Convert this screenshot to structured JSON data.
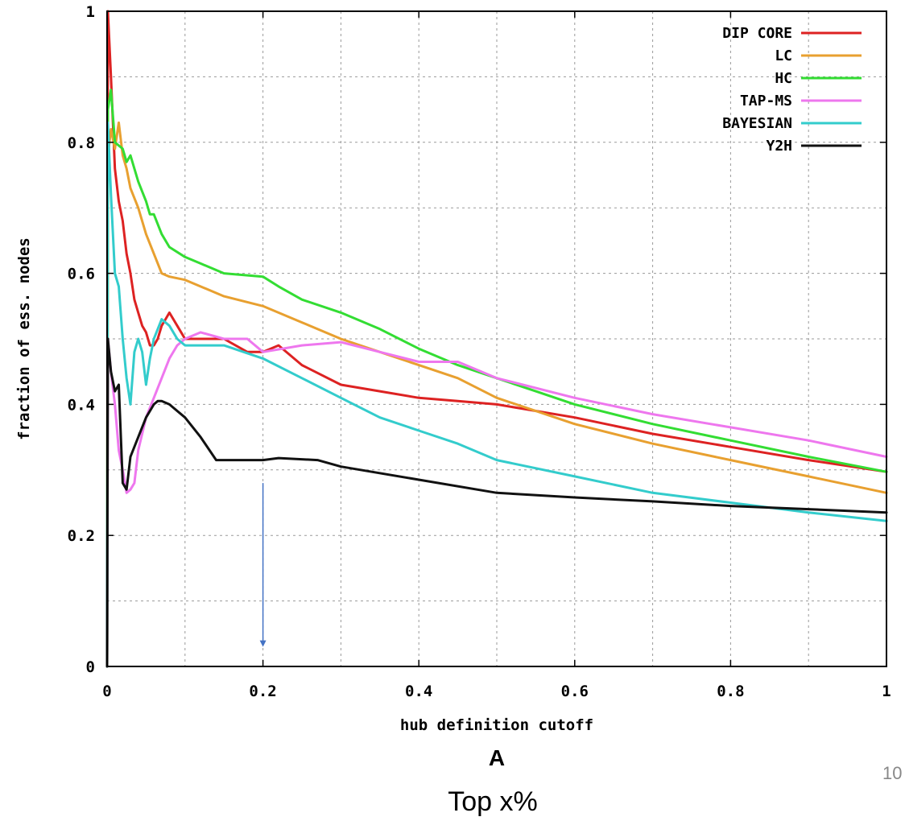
{
  "chart_data": {
    "type": "line",
    "xlabel": "hub definition cutoff",
    "ylabel": "fraction of ess. nodes",
    "xlim": [
      0,
      1
    ],
    "ylim": [
      0,
      1
    ],
    "x_ticks": [
      "0",
      "0.2",
      "0.4",
      "0.6",
      "0.8",
      "1"
    ],
    "y_ticks": [
      "0",
      "0.2",
      "0.4",
      "0.6",
      "0.8",
      "1"
    ],
    "grid": true,
    "legend_position": "top-right",
    "panel_label": "A",
    "annotations": [
      {
        "type": "arrow",
        "x": 0.2,
        "y_from": 0.28,
        "y_to": 0.03,
        "color": "#4472C4"
      }
    ],
    "series": [
      {
        "name": "DIP CORE",
        "color": "#dd2222",
        "points": [
          [
            0,
            0
          ],
          [
            0.001,
            1.0
          ],
          [
            0.005,
            0.9
          ],
          [
            0.01,
            0.76
          ],
          [
            0.015,
            0.71
          ],
          [
            0.02,
            0.68
          ],
          [
            0.025,
            0.63
          ],
          [
            0.03,
            0.6
          ],
          [
            0.035,
            0.56
          ],
          [
            0.04,
            0.54
          ],
          [
            0.045,
            0.52
          ],
          [
            0.05,
            0.51
          ],
          [
            0.055,
            0.49
          ],
          [
            0.06,
            0.49
          ],
          [
            0.065,
            0.5
          ],
          [
            0.07,
            0.52
          ],
          [
            0.075,
            0.53
          ],
          [
            0.08,
            0.54
          ],
          [
            0.09,
            0.52
          ],
          [
            0.1,
            0.5
          ],
          [
            0.12,
            0.5
          ],
          [
            0.15,
            0.5
          ],
          [
            0.18,
            0.48
          ],
          [
            0.2,
            0.48
          ],
          [
            0.22,
            0.49
          ],
          [
            0.25,
            0.46
          ],
          [
            0.3,
            0.43
          ],
          [
            0.35,
            0.42
          ],
          [
            0.4,
            0.41
          ],
          [
            0.45,
            0.405
          ],
          [
            0.5,
            0.4
          ],
          [
            0.6,
            0.38
          ],
          [
            0.7,
            0.355
          ],
          [
            0.8,
            0.335
          ],
          [
            0.9,
            0.315
          ],
          [
            1.0,
            0.297
          ]
        ]
      },
      {
        "name": "LC",
        "color": "#e8a030",
        "points": [
          [
            0,
            0
          ],
          [
            0.001,
            0.78
          ],
          [
            0.005,
            0.82
          ],
          [
            0.01,
            0.79
          ],
          [
            0.015,
            0.83
          ],
          [
            0.02,
            0.78
          ],
          [
            0.025,
            0.76
          ],
          [
            0.03,
            0.73
          ],
          [
            0.04,
            0.7
          ],
          [
            0.05,
            0.66
          ],
          [
            0.06,
            0.63
          ],
          [
            0.07,
            0.6
          ],
          [
            0.08,
            0.595
          ],
          [
            0.1,
            0.59
          ],
          [
            0.15,
            0.565
          ],
          [
            0.2,
            0.55
          ],
          [
            0.25,
            0.525
          ],
          [
            0.3,
            0.5
          ],
          [
            0.35,
            0.48
          ],
          [
            0.4,
            0.46
          ],
          [
            0.45,
            0.44
          ],
          [
            0.5,
            0.41
          ],
          [
            0.6,
            0.37
          ],
          [
            0.7,
            0.34
          ],
          [
            0.8,
            0.315
          ],
          [
            0.9,
            0.29
          ],
          [
            1.0,
            0.265
          ]
        ]
      },
      {
        "name": "HC",
        "color": "#33dd33",
        "points": [
          [
            0,
            0
          ],
          [
            0.001,
            0.85
          ],
          [
            0.005,
            0.88
          ],
          [
            0.01,
            0.8
          ],
          [
            0.02,
            0.79
          ],
          [
            0.025,
            0.77
          ],
          [
            0.03,
            0.78
          ],
          [
            0.04,
            0.74
          ],
          [
            0.05,
            0.71
          ],
          [
            0.055,
            0.69
          ],
          [
            0.06,
            0.69
          ],
          [
            0.07,
            0.66
          ],
          [
            0.08,
            0.64
          ],
          [
            0.1,
            0.625
          ],
          [
            0.12,
            0.615
          ],
          [
            0.15,
            0.6
          ],
          [
            0.2,
            0.595
          ],
          [
            0.22,
            0.58
          ],
          [
            0.25,
            0.56
          ],
          [
            0.3,
            0.54
          ],
          [
            0.35,
            0.515
          ],
          [
            0.4,
            0.485
          ],
          [
            0.45,
            0.46
          ],
          [
            0.5,
            0.44
          ],
          [
            0.55,
            0.42
          ],
          [
            0.6,
            0.4
          ],
          [
            0.7,
            0.37
          ],
          [
            0.8,
            0.345
          ],
          [
            0.9,
            0.32
          ],
          [
            1.0,
            0.297
          ]
        ]
      },
      {
        "name": "TAP-MS",
        "color": "#ee77ee",
        "points": [
          [
            0,
            0
          ],
          [
            0.001,
            0.5
          ],
          [
            0.005,
            0.45
          ],
          [
            0.01,
            0.4
          ],
          [
            0.015,
            0.33
          ],
          [
            0.02,
            0.3
          ],
          [
            0.025,
            0.265
          ],
          [
            0.03,
            0.27
          ],
          [
            0.035,
            0.28
          ],
          [
            0.04,
            0.33
          ],
          [
            0.05,
            0.38
          ],
          [
            0.06,
            0.41
          ],
          [
            0.07,
            0.44
          ],
          [
            0.08,
            0.47
          ],
          [
            0.09,
            0.49
          ],
          [
            0.1,
            0.5
          ],
          [
            0.12,
            0.51
          ],
          [
            0.15,
            0.5
          ],
          [
            0.18,
            0.5
          ],
          [
            0.2,
            0.48
          ],
          [
            0.25,
            0.49
          ],
          [
            0.3,
            0.495
          ],
          [
            0.35,
            0.48
          ],
          [
            0.4,
            0.465
          ],
          [
            0.45,
            0.465
          ],
          [
            0.5,
            0.44
          ],
          [
            0.6,
            0.41
          ],
          [
            0.7,
            0.385
          ],
          [
            0.8,
            0.365
          ],
          [
            0.9,
            0.345
          ],
          [
            1.0,
            0.32
          ]
        ]
      },
      {
        "name": "BAYESIAN",
        "color": "#33cccc",
        "points": [
          [
            0,
            0
          ],
          [
            0.001,
            0.83
          ],
          [
            0.005,
            0.72
          ],
          [
            0.01,
            0.6
          ],
          [
            0.015,
            0.58
          ],
          [
            0.02,
            0.5
          ],
          [
            0.025,
            0.44
          ],
          [
            0.03,
            0.4
          ],
          [
            0.035,
            0.48
          ],
          [
            0.04,
            0.5
          ],
          [
            0.045,
            0.48
          ],
          [
            0.05,
            0.43
          ],
          [
            0.055,
            0.47
          ],
          [
            0.06,
            0.5
          ],
          [
            0.07,
            0.53
          ],
          [
            0.08,
            0.52
          ],
          [
            0.09,
            0.5
          ],
          [
            0.1,
            0.49
          ],
          [
            0.15,
            0.49
          ],
          [
            0.2,
            0.47
          ],
          [
            0.25,
            0.44
          ],
          [
            0.3,
            0.41
          ],
          [
            0.35,
            0.38
          ],
          [
            0.4,
            0.36
          ],
          [
            0.45,
            0.34
          ],
          [
            0.5,
            0.315
          ],
          [
            0.6,
            0.29
          ],
          [
            0.7,
            0.265
          ],
          [
            0.8,
            0.25
          ],
          [
            0.9,
            0.235
          ],
          [
            1.0,
            0.222
          ]
        ]
      },
      {
        "name": "Y2H",
        "color": "#111111",
        "points": [
          [
            0,
            0
          ],
          [
            0.001,
            0.5
          ],
          [
            0.005,
            0.45
          ],
          [
            0.01,
            0.42
          ],
          [
            0.015,
            0.43
          ],
          [
            0.02,
            0.28
          ],
          [
            0.025,
            0.27
          ],
          [
            0.03,
            0.32
          ],
          [
            0.04,
            0.35
          ],
          [
            0.05,
            0.38
          ],
          [
            0.06,
            0.4
          ],
          [
            0.065,
            0.405
          ],
          [
            0.07,
            0.405
          ],
          [
            0.08,
            0.4
          ],
          [
            0.1,
            0.38
          ],
          [
            0.12,
            0.35
          ],
          [
            0.14,
            0.315
          ],
          [
            0.2,
            0.315
          ],
          [
            0.22,
            0.318
          ],
          [
            0.27,
            0.315
          ],
          [
            0.3,
            0.305
          ],
          [
            0.4,
            0.285
          ],
          [
            0.5,
            0.265
          ],
          [
            0.6,
            0.258
          ],
          [
            0.7,
            0.252
          ],
          [
            0.8,
            0.245
          ],
          [
            0.9,
            0.24
          ],
          [
            1.0,
            0.235
          ]
        ]
      }
    ]
  },
  "caption": "Top x%",
  "page_number": "10"
}
